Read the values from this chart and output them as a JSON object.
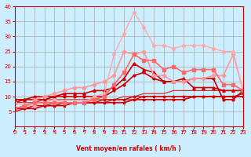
{
  "bg_color": "#cceeff",
  "grid_color": "#aaaaaa",
  "xlabel": "Vent moyen/en rafales ( km/h )",
  "xlabel_color": "#cc0000",
  "tick_color": "#cc0000",
  "arrow_color": "#cc0000",
  "xlim": [
    0,
    23
  ],
  "ylim": [
    0,
    40
  ],
  "xticks": [
    0,
    1,
    2,
    3,
    4,
    5,
    6,
    7,
    8,
    9,
    10,
    11,
    12,
    13,
    14,
    15,
    16,
    17,
    18,
    19,
    20,
    21,
    22,
    23
  ],
  "yticks": [
    5,
    10,
    15,
    20,
    25,
    30,
    35,
    40
  ],
  "lines": [
    {
      "x": [
        0,
        1,
        2,
        3,
        4,
        5,
        6,
        7,
        8,
        9,
        10,
        11,
        12,
        13,
        14,
        15,
        16,
        17,
        18,
        19,
        20,
        21,
        22,
        23
      ],
      "y": [
        6,
        6,
        6,
        7,
        7,
        7,
        8,
        8,
        8,
        8,
        8,
        8,
        9,
        9,
        9,
        9,
        9,
        9,
        10,
        10,
        10,
        10,
        10,
        10
      ],
      "color": "#cc0000",
      "lw": 1.2,
      "marker": "s",
      "ms": 1.5
    },
    {
      "x": [
        0,
        1,
        2,
        3,
        4,
        5,
        6,
        7,
        8,
        9,
        10,
        11,
        12,
        13,
        14,
        15,
        16,
        17,
        18,
        19,
        20,
        21,
        22,
        23
      ],
      "y": [
        6,
        6,
        7,
        7,
        7,
        8,
        8,
        8,
        8,
        9,
        9,
        9,
        10,
        10,
        10,
        10,
        10,
        10,
        10,
        10,
        10,
        10,
        10,
        11
      ],
      "color": "#cc0000",
      "lw": 1.0,
      "marker": "D",
      "ms": 1.5
    },
    {
      "x": [
        0,
        1,
        2,
        3,
        4,
        5,
        6,
        7,
        8,
        9,
        10,
        11,
        12,
        13,
        14,
        15,
        16,
        17,
        18,
        19,
        20,
        21,
        22,
        23
      ],
      "y": [
        5,
        6,
        7,
        7,
        8,
        8,
        8,
        8,
        8,
        8,
        9,
        9,
        9,
        10,
        10,
        10,
        10,
        10,
        10,
        10,
        10,
        10,
        10,
        10
      ],
      "color": "#cc0000",
      "lw": 0.8,
      "marker": null,
      "ms": 0
    },
    {
      "x": [
        0,
        1,
        2,
        3,
        4,
        5,
        6,
        7,
        8,
        9,
        10,
        11,
        12,
        13,
        14,
        15,
        16,
        17,
        18,
        19,
        20,
        21,
        22,
        23
      ],
      "y": [
        8,
        8,
        8,
        9,
        9,
        9,
        9,
        9,
        9,
        9,
        9,
        10,
        10,
        11,
        11,
        11,
        12,
        12,
        12,
        12,
        12,
        12,
        12,
        12
      ],
      "color": "#cc2222",
      "lw": 0.8,
      "marker": null,
      "ms": 0
    },
    {
      "x": [
        0,
        1,
        2,
        3,
        4,
        5,
        6,
        7,
        8,
        9,
        10,
        11,
        12,
        13,
        14,
        15,
        16,
        17,
        18,
        19,
        20,
        21,
        22,
        23
      ],
      "y": [
        9,
        9,
        9,
        9,
        10,
        10,
        10,
        10,
        10,
        10,
        12,
        14,
        17,
        18,
        16,
        15,
        15,
        15,
        16,
        16,
        16,
        9,
        9,
        12
      ],
      "color": "#cc0000",
      "lw": 1.2,
      "marker": "o",
      "ms": 2.0
    },
    {
      "x": [
        0,
        1,
        2,
        3,
        4,
        5,
        6,
        7,
        8,
        9,
        10,
        11,
        12,
        13,
        14,
        15,
        16,
        17,
        18,
        19,
        20,
        21,
        22,
        23
      ],
      "y": [
        8,
        9,
        10,
        10,
        10,
        11,
        11,
        11,
        12,
        12,
        13,
        16,
        21,
        19,
        18,
        15,
        15,
        16,
        13,
        13,
        13,
        12,
        12,
        12
      ],
      "color": "#cc0000",
      "lw": 1.2,
      "marker": "^",
      "ms": 2.5
    },
    {
      "x": [
        2,
        3,
        4,
        5,
        6,
        7,
        8,
        9,
        10,
        11,
        12,
        13,
        14,
        15,
        16,
        17,
        18,
        19,
        20,
        21,
        22,
        23
      ],
      "y": [
        9,
        10,
        11,
        12,
        13,
        13,
        14,
        15,
        17,
        25,
        24,
        25,
        17,
        17,
        15,
        15,
        16,
        16,
        17,
        17,
        24,
        12
      ],
      "color": "#ff9999",
      "lw": 1.2,
      "marker": "D",
      "ms": 2.5
    },
    {
      "x": [
        0,
        1,
        2,
        3,
        4,
        5,
        6,
        7,
        8,
        9,
        10,
        11,
        12,
        13,
        14,
        15,
        16,
        17,
        18,
        19,
        20,
        21,
        22,
        23
      ],
      "y": [
        8,
        7,
        7,
        8,
        9,
        8,
        8,
        8,
        10,
        11,
        24,
        31,
        38,
        33,
        27,
        27,
        26,
        27,
        27,
        27,
        26,
        25,
        25,
        12
      ],
      "color": "#ffaaaa",
      "lw": 1.0,
      "marker": "o",
      "ms": 2.5
    },
    {
      "x": [
        0,
        1,
        2,
        3,
        4,
        5,
        6,
        7,
        8,
        9,
        10,
        11,
        12,
        13,
        14,
        15,
        16,
        17,
        18,
        19,
        20,
        21,
        22,
        23
      ],
      "y": [
        6,
        7,
        8,
        8,
        8,
        8,
        8,
        8,
        9,
        10,
        14,
        18,
        24,
        22,
        22,
        19,
        20,
        18,
        19,
        19,
        19,
        14,
        14,
        12
      ],
      "color": "#ff6666",
      "lw": 1.2,
      "marker": "s",
      "ms": 2.5
    }
  ]
}
